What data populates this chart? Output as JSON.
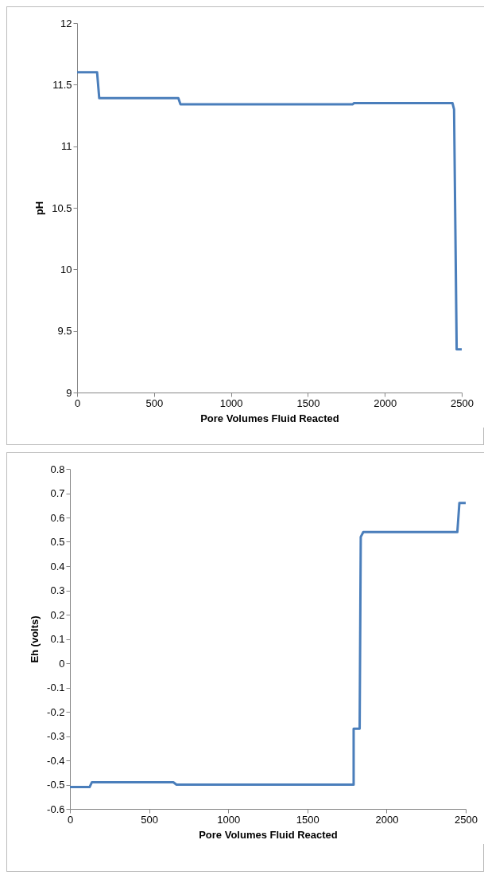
{
  "chart_data": [
    {
      "type": "line",
      "xlabel": "Pore Volumes Fluid Reacted",
      "ylabel": "pH",
      "xlim": [
        0,
        2500
      ],
      "xticks": [
        0,
        500,
        1000,
        1500,
        2000,
        2500
      ],
      "ylim": [
        9,
        12
      ],
      "yticks": [
        9,
        9.5,
        10,
        10.5,
        11,
        11.5,
        12
      ],
      "series": [
        {
          "color": "#4a7ebb",
          "x": [
            0,
            130,
            144,
            658,
            672,
            1790,
            1800,
            2440,
            2450,
            2467,
            2500
          ],
          "values": [
            11.6,
            11.6,
            11.39,
            11.39,
            11.34,
            11.34,
            11.35,
            11.35,
            11.3,
            9.35,
            9.35
          ]
        }
      ]
    },
    {
      "type": "line",
      "xlabel": "Pore Volumes Fluid Reacted",
      "ylabel": "Eh (volts)",
      "xlim": [
        0,
        2500
      ],
      "xticks": [
        0,
        500,
        1000,
        1500,
        2000,
        2500
      ],
      "ylim": [
        -0.6,
        0.8
      ],
      "yticks": [
        -0.6,
        -0.5,
        -0.4,
        -0.3,
        -0.2,
        -0.1,
        0,
        0.1,
        0.2,
        0.3,
        0.4,
        0.5,
        0.6,
        0.7,
        0.8
      ],
      "series": [
        {
          "color": "#4a7ebb",
          "x": [
            0,
            124,
            139,
            653,
            673,
            1792,
            1792,
            1830,
            1837,
            1853,
            2447,
            2460,
            2500
          ],
          "values": [
            -0.51,
            -0.51,
            -0.49,
            -0.49,
            -0.5,
            -0.5,
            -0.27,
            -0.27,
            0.52,
            0.54,
            0.54,
            0.66,
            0.66
          ]
        }
      ]
    }
  ]
}
